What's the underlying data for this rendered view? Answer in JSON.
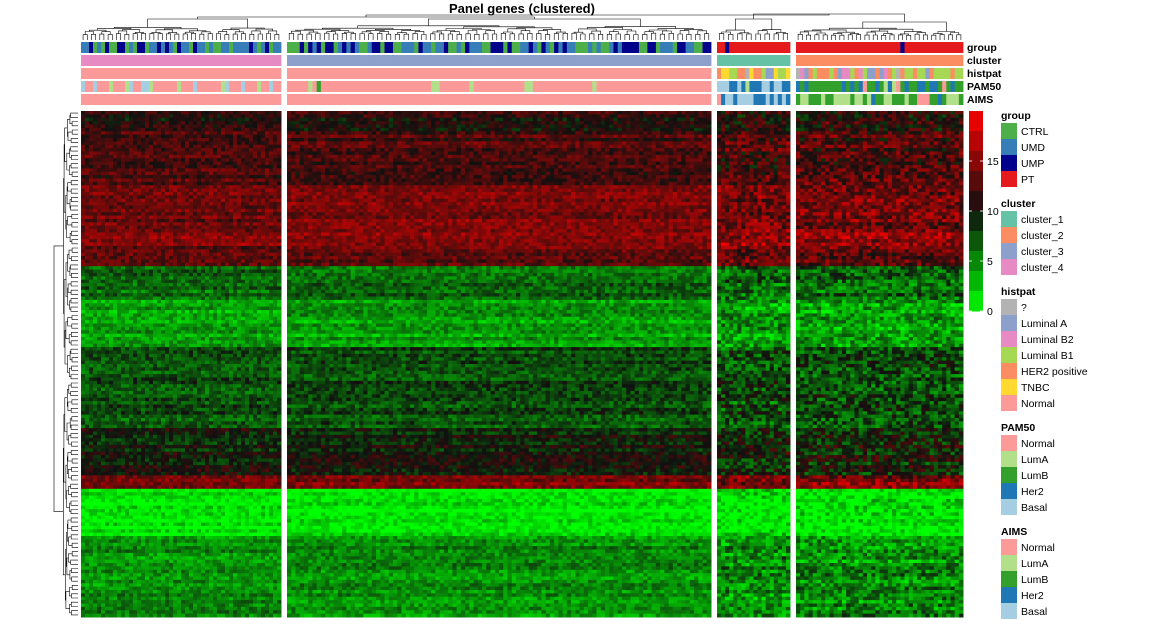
{
  "chart_data": {
    "type": "heatmap",
    "title": "Panel genes (clustered)",
    "color_scale": {
      "min": 0,
      "max": 20,
      "ticks": [
        0,
        5,
        10,
        15
      ],
      "low_color": "#00ff00",
      "mid_color": "#101010",
      "high_color": "#ff0000"
    },
    "column_splits": [
      {
        "cluster": "cluster_4",
        "n_cols": 50
      },
      {
        "cluster": "cluster_3",
        "n_cols": 100
      },
      {
        "cluster": "cluster_1",
        "n_cols": 18
      },
      {
        "cluster": "cluster_2",
        "n_cols": 40
      }
    ],
    "n_rows": 150,
    "annotation_tracks": [
      {
        "key": "group",
        "label": "group"
      },
      {
        "key": "cluster",
        "label": "cluster"
      },
      {
        "key": "histpat",
        "label": "histpat"
      },
      {
        "key": "PAM50",
        "label": "PAM50"
      },
      {
        "key": "AIMS",
        "label": "AIMS"
      }
    ],
    "legends": [
      {
        "title": "group",
        "entries": [
          {
            "label": "CTRL",
            "color": "#4daf4a"
          },
          {
            "label": "UMD",
            "color": "#377eb8"
          },
          {
            "label": "UMP",
            "color": "#00008b"
          },
          {
            "label": "PT",
            "color": "#e41a1c"
          }
        ]
      },
      {
        "title": "cluster",
        "entries": [
          {
            "label": "cluster_1",
            "color": "#66c2a5"
          },
          {
            "label": "cluster_2",
            "color": "#fc8d62"
          },
          {
            "label": "cluster_3",
            "color": "#8da0cb"
          },
          {
            "label": "cluster_4",
            "color": "#e78ac3"
          }
        ]
      },
      {
        "title": "histpat",
        "entries": [
          {
            "label": "?",
            "color": "#b3b3b3"
          },
          {
            "label": "Luminal A",
            "color": "#8da0cb"
          },
          {
            "label": "Luminal B2",
            "color": "#e78ac3"
          },
          {
            "label": "Luminal B1",
            "color": "#a6d854"
          },
          {
            "label": "HER2 positive",
            "color": "#fc8d62"
          },
          {
            "label": "TNBC",
            "color": "#ffd92f"
          },
          {
            "label": "Normal",
            "color": "#fb9a99"
          }
        ]
      },
      {
        "title": "PAM50",
        "entries": [
          {
            "label": "Normal",
            "color": "#fb9a99"
          },
          {
            "label": "LumA",
            "color": "#b2df8a"
          },
          {
            "label": "LumB",
            "color": "#33a02c"
          },
          {
            "label": "Her2",
            "color": "#1f78b4"
          },
          {
            "label": "Basal",
            "color": "#a6cee3"
          }
        ]
      },
      {
        "title": "AIMS",
        "entries": [
          {
            "label": "Normal",
            "color": "#fb9a99"
          },
          {
            "label": "LumA",
            "color": "#b2df8a"
          },
          {
            "label": "LumB",
            "color": "#33a02c"
          },
          {
            "label": "Her2",
            "color": "#1f78b4"
          },
          {
            "label": "Basal",
            "color": "#a6cee3"
          }
        ]
      }
    ],
    "row_blocks": [
      {
        "rows": 6,
        "mean": 11.0
      },
      {
        "rows": 16,
        "mean": 12.5
      },
      {
        "rows": 14,
        "mean": 14.0
      },
      {
        "rows": 4,
        "mean": 15.5
      },
      {
        "rows": 6,
        "mean": 13.5
      },
      {
        "rows": 10,
        "mean": 6.5
      },
      {
        "rows": 14,
        "mean": 4.0
      },
      {
        "rows": 24,
        "mean": 7.5
      },
      {
        "rows": 14,
        "mean": 9.5
      },
      {
        "rows": 4,
        "mean": 14.5
      },
      {
        "rows": 14,
        "mean": 0.8
      },
      {
        "rows": 24,
        "mean": 5.0
      }
    ]
  }
}
